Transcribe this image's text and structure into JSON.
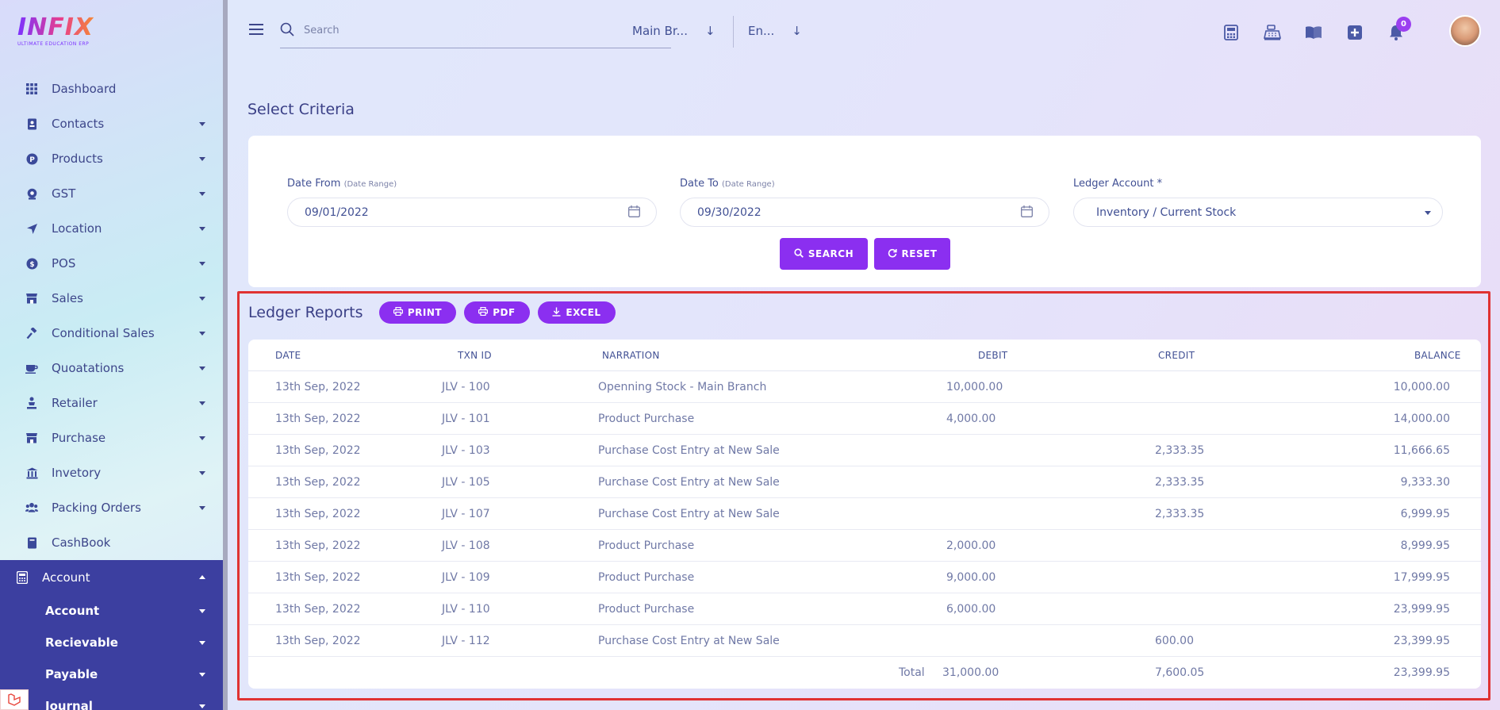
{
  "brand": {
    "logo_text": "INFIX",
    "logo_sub": "ULTIMATE EDUCATION ERP"
  },
  "sidebar": {
    "items": [
      {
        "label": "Dashboard",
        "icon": "grid-icon",
        "caret": false
      },
      {
        "label": "Contacts",
        "icon": "contacts-icon",
        "caret": true
      },
      {
        "label": "Products",
        "icon": "products-icon",
        "caret": true
      },
      {
        "label": "GST",
        "icon": "gst-icon",
        "caret": true
      },
      {
        "label": "Location",
        "icon": "location-icon",
        "caret": true
      },
      {
        "label": "POS",
        "icon": "pos-icon",
        "caret": true
      },
      {
        "label": "Sales",
        "icon": "sales-icon",
        "caret": true
      },
      {
        "label": "Conditional Sales",
        "icon": "gavel-icon",
        "caret": true
      },
      {
        "label": "Quoatations",
        "icon": "quotation-icon",
        "caret": true
      },
      {
        "label": "Retailer",
        "icon": "retailer-icon",
        "caret": true
      },
      {
        "label": "Purchase",
        "icon": "purchase-icon",
        "caret": true
      },
      {
        "label": "Invetory",
        "icon": "bank-icon",
        "caret": true
      },
      {
        "label": "Packing Orders",
        "icon": "users-icon",
        "caret": true
      },
      {
        "label": "CashBook",
        "icon": "book-icon",
        "caret": false
      }
    ],
    "account": {
      "label": "Account",
      "icon": "calculator-icon",
      "sub_items": [
        "Account",
        "Recievable",
        "Payable",
        "Journal"
      ]
    }
  },
  "header": {
    "search_placeholder": "Search",
    "branch": "Main Br...",
    "language": "En...",
    "notification_count": "0",
    "icons": [
      "calculator-icon",
      "cash-register-icon",
      "open-book-icon",
      "plus-square-icon",
      "bell-icon"
    ]
  },
  "criteria": {
    "title": "Select Criteria",
    "date_from_label": "Date From",
    "date_from_hint": "(Date Range)",
    "date_from_value": "09/01/2022",
    "date_to_label": "Date To",
    "date_to_hint": "(Date Range)",
    "date_to_value": "09/30/2022",
    "ledger_label": "Ledger Account *",
    "ledger_value": "Inventory / Current Stock",
    "search_btn": "SEARCH",
    "reset_btn": "RESET"
  },
  "report": {
    "title": "Ledger Reports",
    "print_btn": "PRINT",
    "pdf_btn": "PDF",
    "excel_btn": "EXCEL",
    "columns": [
      "DATE",
      "TXN ID",
      "NARRATION",
      "DEBIT",
      "CREDIT",
      "BALANCE"
    ],
    "rows": [
      [
        "13th Sep, 2022",
        "JLV - 100",
        "Openning Stock - Main Branch",
        "10,000.00",
        "",
        "10,000.00"
      ],
      [
        "13th Sep, 2022",
        "JLV - 101",
        "Product Purchase",
        "4,000.00",
        "",
        "14,000.00"
      ],
      [
        "13th Sep, 2022",
        "JLV - 103",
        "Purchase Cost Entry at New Sale",
        "",
        "2,333.35",
        "11,666.65"
      ],
      [
        "13th Sep, 2022",
        "JLV - 105",
        "Purchase Cost Entry at New Sale",
        "",
        "2,333.35",
        "9,333.30"
      ],
      [
        "13th Sep, 2022",
        "JLV - 107",
        "Purchase Cost Entry at New Sale",
        "",
        "2,333.35",
        "6,999.95"
      ],
      [
        "13th Sep, 2022",
        "JLV - 108",
        "Product Purchase",
        "2,000.00",
        "",
        "8,999.95"
      ],
      [
        "13th Sep, 2022",
        "JLV - 109",
        "Product Purchase",
        "9,000.00",
        "",
        "17,999.95"
      ],
      [
        "13th Sep, 2022",
        "JLV - 110",
        "Product Purchase",
        "6,000.00",
        "",
        "23,999.95"
      ],
      [
        "13th Sep, 2022",
        "JLV - 112",
        "Purchase Cost Entry at New Sale",
        "",
        "600.00",
        "23,399.95"
      ]
    ],
    "total_label": "Total",
    "total_debit": "31,000.00",
    "total_credit": "7,600.05",
    "total_balance": "23,399.95"
  },
  "colors": {
    "accent": "#8b2ff0",
    "sidebar_active": "#3c3fa0",
    "highlight_frame": "#e03232"
  }
}
